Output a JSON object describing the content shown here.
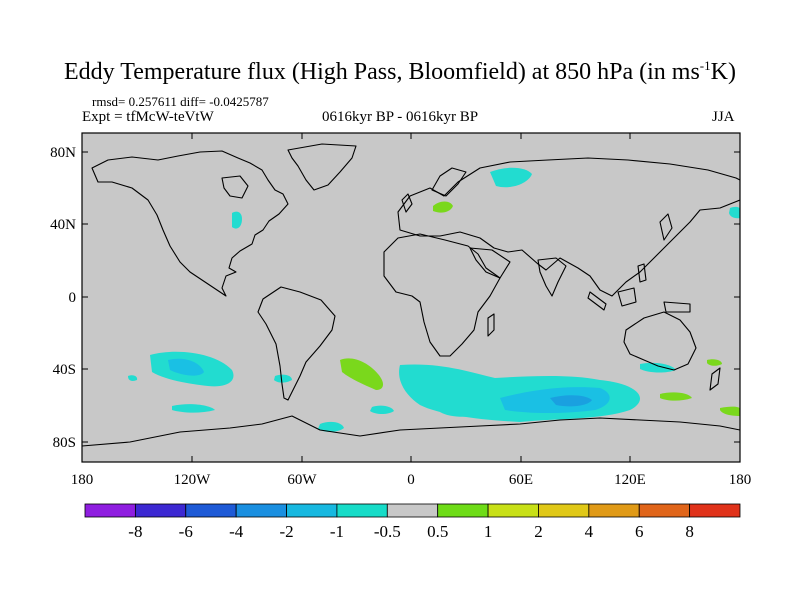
{
  "title_main": "Eddy Temperature flux (High Pass, Bloomfield) at 850 hPa (in ms",
  "title_sup": "-1",
  "title_end": "K)",
  "stats": "rmsd= 0.257611 diff= -0.0425787",
  "experiment": "Expt = tfMcW-teVtW",
  "period": "0616kyr BP - 0616kyr BP",
  "season": "JJA",
  "lat_labels": [
    "80N",
    "40N",
    "0",
    "40S",
    "80S"
  ],
  "lon_labels": [
    "180",
    "120W",
    "60W",
    "0",
    "60E",
    "120E",
    "180"
  ],
  "colorbar": {
    "labels": [
      "-8",
      "-6",
      "-4",
      "-2",
      "-1",
      "-0.5",
      "0.5",
      "1",
      "2",
      "4",
      "6",
      "8"
    ],
    "colors": [
      "#8f1ee0",
      "#3c28d2",
      "#1e5ad6",
      "#1a8fe0",
      "#17b8e0",
      "#17dcc8",
      "#c8c8c8",
      "#6edc17",
      "#c8e017",
      "#e0c817",
      "#e09a17",
      "#e0651a",
      "#e0321a"
    ]
  },
  "colors": {
    "background": "#c8c8c8",
    "positive": "#7ad81c",
    "negative_light": "#22dcd0",
    "negative_mid": "#1ac0e4"
  }
}
